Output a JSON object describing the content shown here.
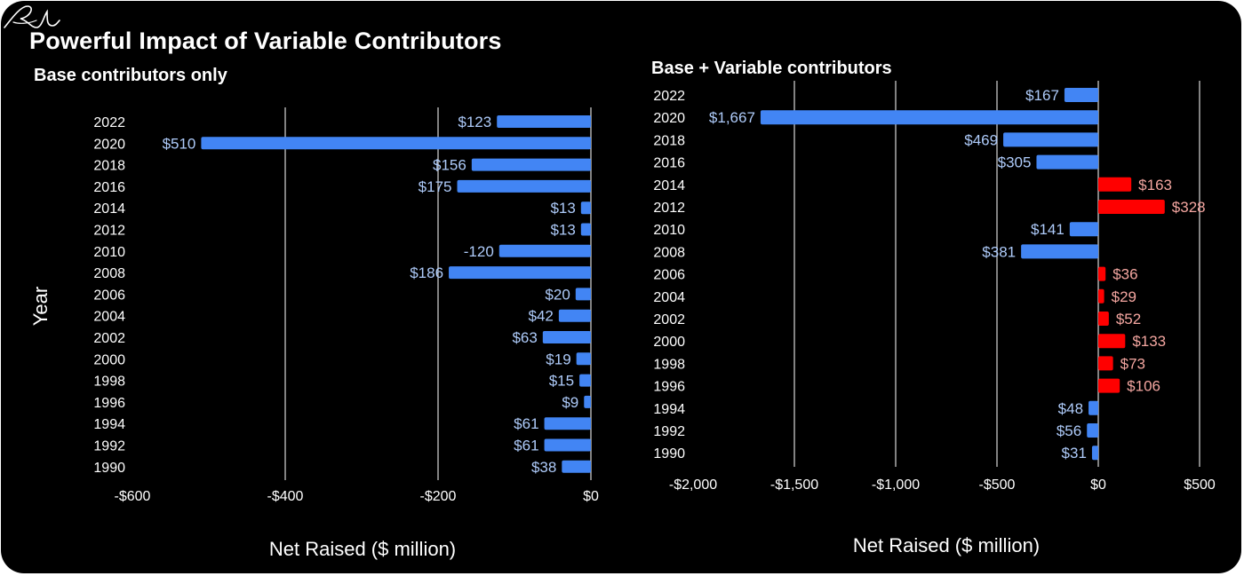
{
  "title": "Powerful Impact of Variable Contributors",
  "chart_data": [
    {
      "type": "bar",
      "orientation": "horizontal",
      "subtitle": "Base contributors only",
      "xlabel": "Net Raised ($ million)",
      "ylabel": "Year",
      "xlim": [
        -600,
        0
      ],
      "x_ticks": [
        -600,
        -400,
        -200,
        0
      ],
      "x_tick_labels": [
        "-$600",
        "-$400",
        "-$200",
        "$0"
      ],
      "grid": "vertical",
      "categories": [
        "2022",
        "2020",
        "2018",
        "2016",
        "2014",
        "2012",
        "2010",
        "2008",
        "2006",
        "2004",
        "2002",
        "2000",
        "1998",
        "1996",
        "1994",
        "1992",
        "1990"
      ],
      "values": [
        -123,
        -510,
        -156,
        -175,
        -13,
        -13,
        -120,
        -186,
        -20,
        -42,
        -63,
        -19,
        -15,
        -9,
        -61,
        -61,
        -38
      ],
      "data_labels": [
        "$123",
        "$510",
        "$156",
        "$175",
        "$13",
        "$13",
        "-120",
        "$186",
        "$20",
        "$42",
        "$63",
        "$19",
        "$15",
        "$9",
        "$61",
        "$61",
        "$38"
      ],
      "colors": {
        "negative": "#4285f4",
        "positive": "#ff0000",
        "negative_label": "#aecbfa",
        "positive_label": "#f4a6a0"
      }
    },
    {
      "type": "bar",
      "orientation": "horizontal",
      "subtitle": "Base + Variable contributors",
      "xlabel": "Net Raised ($ million)",
      "ylabel": "",
      "xlim": [
        -2000,
        500
      ],
      "x_ticks": [
        -2000,
        -1500,
        -1000,
        -500,
        0,
        500
      ],
      "x_tick_labels": [
        "-$2,000",
        "-$1,500",
        "-$1,000",
        "-$500",
        "$0",
        "$500"
      ],
      "grid": "vertical",
      "categories": [
        "2022",
        "2020",
        "2018",
        "2016",
        "2014",
        "2012",
        "2010",
        "2008",
        "2006",
        "2004",
        "2002",
        "2000",
        "1998",
        "1996",
        "1994",
        "1992",
        "1990"
      ],
      "values": [
        -167,
        -1667,
        -469,
        -305,
        163,
        328,
        -141,
        -381,
        36,
        29,
        52,
        133,
        73,
        106,
        -48,
        -56,
        -31
      ],
      "data_labels": [
        "$167",
        "$1,667",
        "$469",
        "$305",
        "$163",
        "$328",
        "$141",
        "$381",
        "$36",
        "$29",
        "$52",
        "$133",
        "$73",
        "$106",
        "$48",
        "$56",
        "$31"
      ],
      "colors": {
        "negative": "#4285f4",
        "positive": "#ff0000",
        "negative_label": "#aecbfa",
        "positive_label": "#f4a6a0"
      }
    }
  ]
}
